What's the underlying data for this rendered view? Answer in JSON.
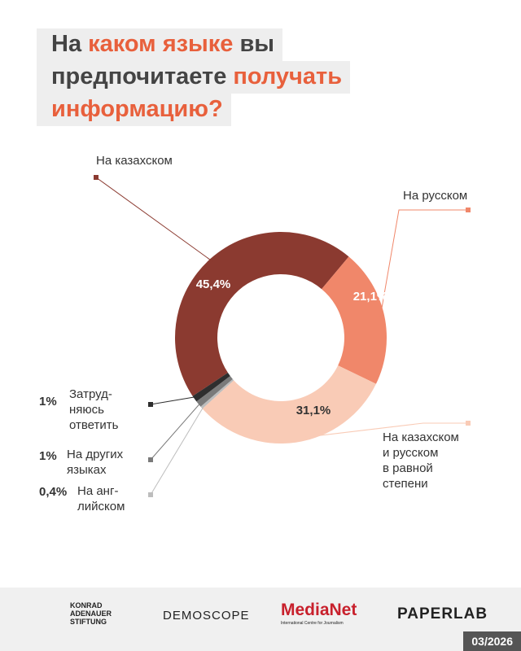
{
  "chart_data": {
    "type": "pie",
    "title": {
      "lines": [
        [
          {
            "text": "На",
            "color": "#444444"
          },
          {
            "text": "каком языке",
            "color": "#e8603c"
          },
          {
            "text": "вы",
            "color": "#444444"
          }
        ],
        [
          {
            "text": "предпочитаете",
            "color": "#444444"
          },
          {
            "text": "получать",
            "color": "#e8603c"
          }
        ],
        [
          {
            "text": "информацию?",
            "color": "#e8603c"
          }
        ]
      ]
    },
    "categories": [
      "На казахском",
      "На русском",
      "На казахском\nи русском\nв равной\nстепени",
      "На анг-\nлийском",
      "На других\nязыках",
      "Затруд-\nняюсь\nответить"
    ],
    "values": [
      45.4,
      21.1,
      31.1,
      0.4,
      1,
      1
    ],
    "value_labels": [
      "45,4%",
      "21,1%",
      "31,1%",
      "0,4%",
      "1%",
      "1%"
    ],
    "colors": [
      "#8b3a30",
      "#f0876a",
      "#f9cbb6",
      "#bdbdbd",
      "#7a7a7a",
      "#2e2e2e"
    ],
    "donut": true
  },
  "footer": {
    "logos": [
      "KONRAD\nADENAUER\nSTIFTUNG",
      "DEMOSCOPE",
      "MediaNet",
      "International Centre for Journalism",
      "PAPERLAB"
    ],
    "date": "03/2026"
  }
}
